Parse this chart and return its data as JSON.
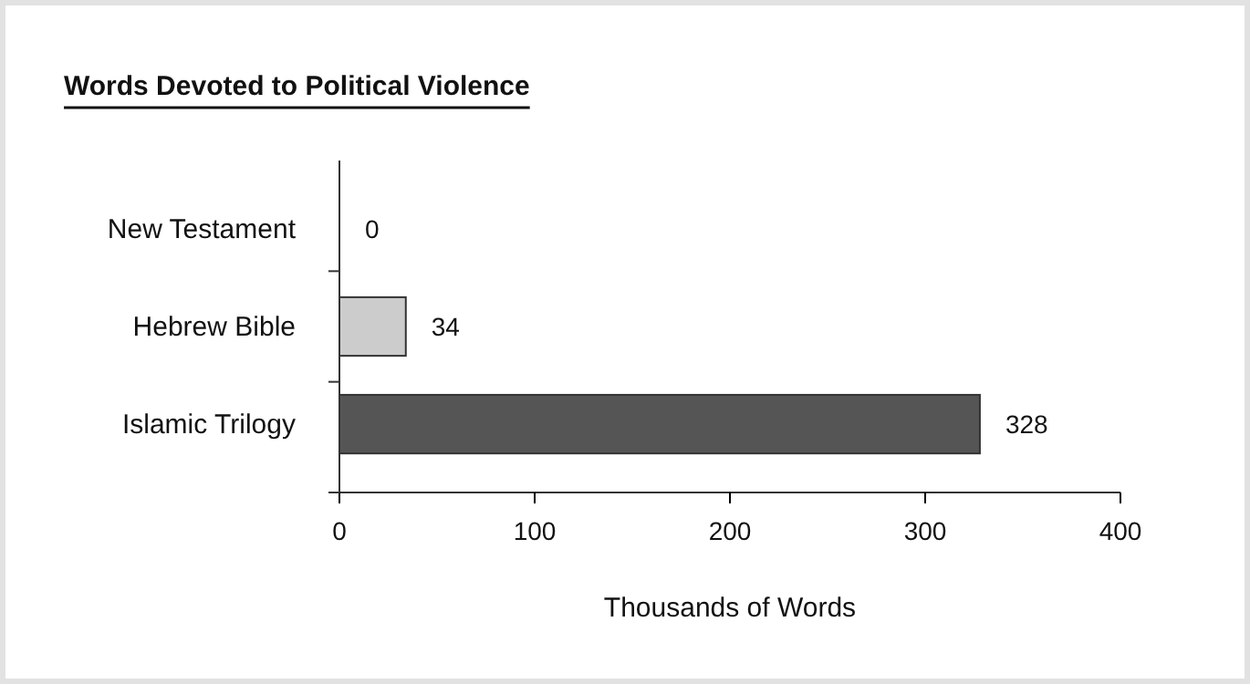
{
  "chart_data": {
    "type": "bar",
    "orientation": "horizontal",
    "title": "Words Devoted to Political Violence",
    "xlabel": "Thousands of Words",
    "categories": [
      "New Testament",
      "Hebrew Bible",
      "Islamic Trilogy"
    ],
    "values": [
      0,
      34,
      328
    ],
    "colors": [
      "#cccccc",
      "#cccccc",
      "#555555"
    ],
    "xlim": [
      0,
      400
    ],
    "xticks": [
      0,
      100,
      200,
      300,
      400
    ],
    "data_labels": true
  }
}
